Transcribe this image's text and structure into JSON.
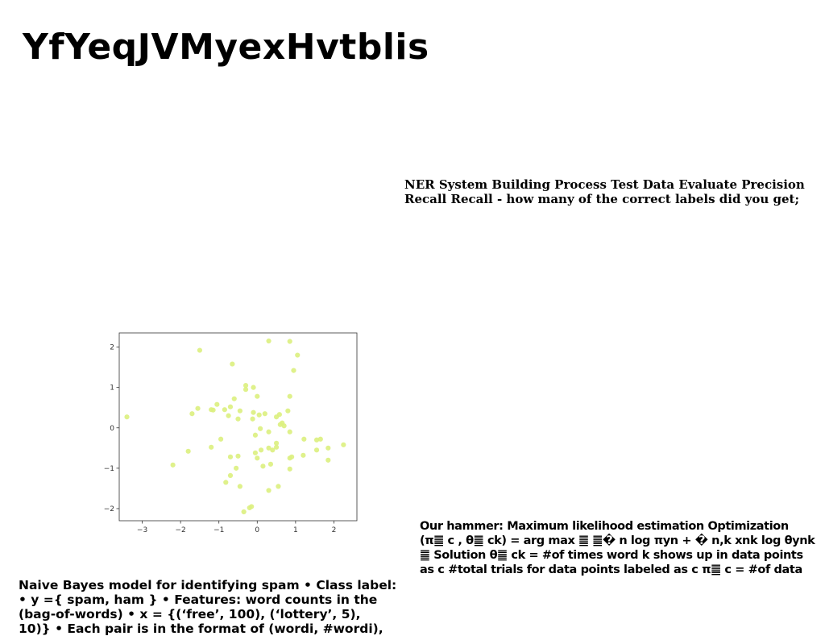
{
  "title": "YfYeqJVMyexHvtblis",
  "ner_text": {
    "lines": [
      "NER System Building Process Test Data Evaluate Precision",
      "Recall Recall - how many of the correct labels did you get;"
    ]
  },
  "hammer_text": {
    "lines": [
      "Our hammer: Maximum likelihood estimation Optimization",
      "(π䷀ c , θ䷀ ck) = arg max ䷀ ䷀� n log πyn + � n,k xnk log θynk",
      "䷀ Solution θ䷀ ck = #of times word k shows up in data points",
      "as c #total trials for data points labeled as c π䷀ c = #of data"
    ]
  },
  "naive_bayes_text": {
    "lines": [
      "Naive Bayes model for identifying spam • Class label:",
      "• y ={ spam, ham } • Features: word counts in the",
      "(bag-of-words) • x = {(‘free’, 100), (‘lottery’, 5),",
      "10)} • Each pair is in the format of (wordi, #wordi),"
    ]
  },
  "chart_data": {
    "type": "scatter",
    "point_color": "#dcf07e",
    "xlim": [
      -3.6,
      2.6
    ],
    "ylim": [
      -2.3,
      2.35
    ],
    "xticks": [
      -3,
      -2,
      -1,
      0,
      1,
      2
    ],
    "yticks": [
      -2,
      -1,
      0,
      1,
      2
    ],
    "xtick_labels": [
      "−3",
      "−2",
      "−1",
      "0",
      "1",
      "2"
    ],
    "ytick_labels": [
      "−2",
      "−1",
      "0",
      "1",
      "2"
    ],
    "grid": false,
    "points": [
      [
        -1.5,
        1.92
      ],
      [
        -0.65,
        1.58
      ],
      [
        0.3,
        2.15
      ],
      [
        0.85,
        2.14
      ],
      [
        1.05,
        1.8
      ],
      [
        0.95,
        1.42
      ],
      [
        -0.3,
        1.05
      ],
      [
        -0.3,
        0.95
      ],
      [
        -0.1,
        1.0
      ],
      [
        0.0,
        0.78
      ],
      [
        0.85,
        0.78
      ],
      [
        -1.05,
        0.58
      ],
      [
        -0.6,
        0.72
      ],
      [
        -0.7,
        0.52
      ],
      [
        -0.85,
        0.45
      ],
      [
        -1.15,
        0.44
      ],
      [
        -1.55,
        0.48
      ],
      [
        -1.7,
        0.35
      ],
      [
        -0.45,
        0.42
      ],
      [
        -0.75,
        0.3
      ],
      [
        -0.5,
        0.22
      ],
      [
        -0.1,
        0.38
      ],
      [
        0.05,
        0.32
      ],
      [
        0.2,
        0.35
      ],
      [
        -0.12,
        0.22
      ],
      [
        0.5,
        0.27
      ],
      [
        0.58,
        0.33
      ],
      [
        0.8,
        0.42
      ],
      [
        0.65,
        0.12
      ],
      [
        0.7,
        0.05
      ],
      [
        -3.4,
        0.27
      ],
      [
        -1.2,
        0.45
      ],
      [
        0.08,
        -0.02
      ],
      [
        0.3,
        -0.1
      ],
      [
        0.6,
        0.08
      ],
      [
        0.85,
        -0.1
      ],
      [
        -0.05,
        -0.18
      ],
      [
        -0.95,
        -0.28
      ],
      [
        -1.2,
        -0.48
      ],
      [
        -1.8,
        -0.58
      ],
      [
        0.5,
        -0.38
      ],
      [
        0.5,
        -0.48
      ],
      [
        0.3,
        -0.5
      ],
      [
        0.4,
        -0.55
      ],
      [
        0.1,
        -0.55
      ],
      [
        -0.05,
        -0.62
      ],
      [
        0.0,
        -0.75
      ],
      [
        -0.5,
        -0.7
      ],
      [
        -0.7,
        -0.72
      ],
      [
        0.15,
        -0.95
      ],
      [
        0.35,
        -0.9
      ],
      [
        0.85,
        -0.75
      ],
      [
        0.9,
        -0.72
      ],
      [
        1.22,
        -0.28
      ],
      [
        1.55,
        -0.3
      ],
      [
        1.65,
        -0.28
      ],
      [
        1.85,
        -0.5
      ],
      [
        1.55,
        -0.55
      ],
      [
        1.2,
        -0.68
      ],
      [
        1.85,
        -0.8
      ],
      [
        2.25,
        -0.42
      ],
      [
        -2.2,
        -0.92
      ],
      [
        -0.55,
        -1.0
      ],
      [
        -0.7,
        -1.18
      ],
      [
        -0.82,
        -1.35
      ],
      [
        -0.45,
        -1.45
      ],
      [
        0.85,
        -1.02
      ],
      [
        0.55,
        -1.45
      ],
      [
        0.3,
        -1.55
      ],
      [
        -0.15,
        -1.95
      ],
      [
        -0.2,
        -1.98
      ],
      [
        -0.35,
        -2.08
      ]
    ]
  }
}
